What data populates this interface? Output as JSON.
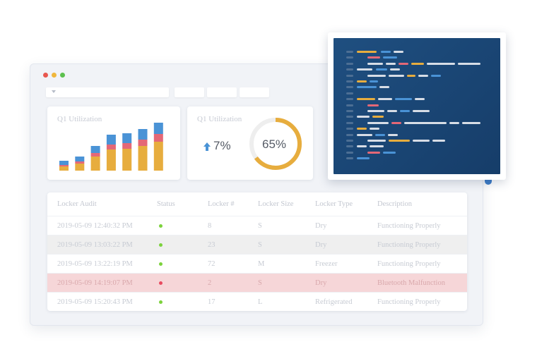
{
  "colors": {
    "dot_red": "#e8574f",
    "dot_yellow": "#f0b73c",
    "dot_green": "#5cc04e",
    "bar_yellow": "#e7ad3e",
    "bar_pink": "#e46877",
    "bar_blue": "#4a93d6",
    "status_ok": "#7cd23c",
    "status_error": "#e84a5f",
    "highlight_gray": "#efefef",
    "highlight_red": "#f6d6d8"
  },
  "toolbar": {
    "select_icon": "chevron-down-icon"
  },
  "bar_card": {
    "title": "Q1 Utilization"
  },
  "donut_card": {
    "title": "Q1 Utilization",
    "trend_icon": "arrow-up-icon",
    "trend_value": "7%",
    "donut_value": "65%",
    "donut_fraction": 0.65
  },
  "chart_data": {
    "type": "bar",
    "stacked": true,
    "categories": [
      "",
      "",
      "",
      "",
      "",
      "",
      ""
    ],
    "series": [
      {
        "color": "#e7ad3e",
        "values": [
          6,
          10,
          20,
          30,
          31,
          35,
          41
        ]
      },
      {
        "color": "#e46877",
        "values": [
          2,
          3,
          5,
          7,
          8,
          9,
          11
        ]
      },
      {
        "color": "#4a93d6",
        "values": [
          6,
          7,
          10,
          14,
          14,
          15,
          16
        ]
      }
    ],
    "ylim": [
      0,
      76
    ],
    "grid": false
  },
  "table": {
    "headers": [
      "Locker Audit",
      "Status",
      "Locker #",
      "Locker Size",
      "Locker Type",
      "Description"
    ],
    "rows": [
      {
        "time": "2019-05-09 12:40:32 PM",
        "status": "ok",
        "number": "8",
        "size": "S",
        "type": "Dry",
        "description": "Functioning Properly",
        "highlight": "none"
      },
      {
        "time": "2019-05-09 13:03:22 PM",
        "status": "ok",
        "number": "23",
        "size": "S",
        "type": "Dry",
        "description": "Functioning Properly",
        "highlight": "gray"
      },
      {
        "time": "2019-05-09 13:22:19 PM",
        "status": "ok",
        "number": "72",
        "size": "M",
        "type": "Freezer",
        "description": "Functioning Properly",
        "highlight": "none"
      },
      {
        "time": "2019-05-09 14:19:07 PM",
        "status": "error",
        "number": "2",
        "size": "S",
        "type": "Dry",
        "description": "Bluetooth Malfunction",
        "highlight": "red"
      },
      {
        "time": "2019-05-09 15:20:43 PM",
        "status": "ok",
        "number": "17",
        "size": "L",
        "type": "Refrigerated",
        "description": "Functioning Properly",
        "highlight": "none"
      }
    ]
  },
  "code_window": {
    "theme_colors": [
      "#4d6f94",
      "#e7ad3e",
      "#4a93d6",
      "#e46877",
      "#d7dde6"
    ]
  }
}
